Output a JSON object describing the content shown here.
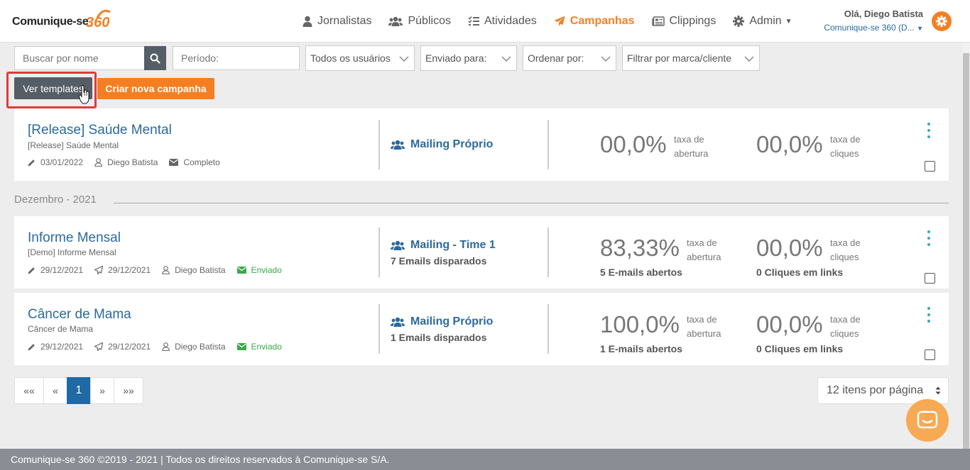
{
  "brand": {
    "name": "Comunique-se",
    "number": "360",
    "accent": "#f47f22",
    "link": "#2b6a9e"
  },
  "nav": [
    {
      "label": "Jornalistas",
      "icon": "user-icon"
    },
    {
      "label": "Públicos",
      "icon": "users-icon"
    },
    {
      "label": "Atividades",
      "icon": "tasks-icon"
    },
    {
      "label": "Campanhas",
      "icon": "paper-plane-icon",
      "active": true
    },
    {
      "label": "Clippings",
      "icon": "newspaper-icon"
    },
    {
      "label": "Admin",
      "icon": "gear-icon",
      "dropdown": true
    }
  ],
  "user": {
    "greeting": "Olá, Diego Batista",
    "org": "Comunique-se 360 (D..."
  },
  "filters": {
    "search_placeholder": "Buscar por nome",
    "period_placeholder": "Período:",
    "users": "Todos os usuários",
    "sent_to": "Enviado para:",
    "order_by": "Ordenar por:",
    "brand_filter": "Filtrar por marca/cliente"
  },
  "actions": {
    "templates": "Ver templates",
    "new_campaign": "Criar nova campanha"
  },
  "campaigns": [
    {
      "title": "[Release] Saúde Mental",
      "subtitle": "[Release] Saúde Mental",
      "edited": "03/01/2022",
      "author": "Diego Batista",
      "status": "Completo",
      "mailing": "Mailing Próprio",
      "open_rate": "00,0%",
      "click_rate": "00,0%",
      "open_label": "taxa de abertura",
      "click_label": "taxa de cliques"
    },
    {
      "title": "Informe Mensal",
      "subtitle": "[Demo] Informe Mensal",
      "edited": "29/12/2021",
      "sent": "29/12/2021",
      "author": "Diego Batista",
      "status": "Enviado",
      "mailing": "Mailing - Time 1",
      "emails_sent": "7 Emails disparados",
      "open_rate": "83,33%",
      "click_rate": "00,0%",
      "open_label": "taxa de abertura",
      "click_label": "taxa de cliques",
      "opened": "5 E-mails abertos",
      "clicks": "0 Cliques em links"
    },
    {
      "title": "Câncer de Mama",
      "subtitle": "Câncer de Mama",
      "edited": "29/12/2021",
      "sent": "29/12/2021",
      "author": "Diego Batista",
      "status": "Enviado",
      "mailing": "Mailing Próprio",
      "emails_sent": "1 Emails disparados",
      "open_rate": "100,0%",
      "click_rate": "00,0%",
      "open_label": "taxa de abertura",
      "click_label": "taxa de cliques",
      "opened": "1 E-mails abertos",
      "clicks": "0 Cliques em links"
    }
  ],
  "group_label": "Dezembro - 2021",
  "pagination": {
    "first": "««",
    "prev": "«",
    "current": "1",
    "next": "»",
    "last": "»»"
  },
  "per_page": "12 itens por página",
  "footer": "Comunique-se 360 ©2019 - 2021 | Todos os direitos reservados à Comunique-se S/A."
}
